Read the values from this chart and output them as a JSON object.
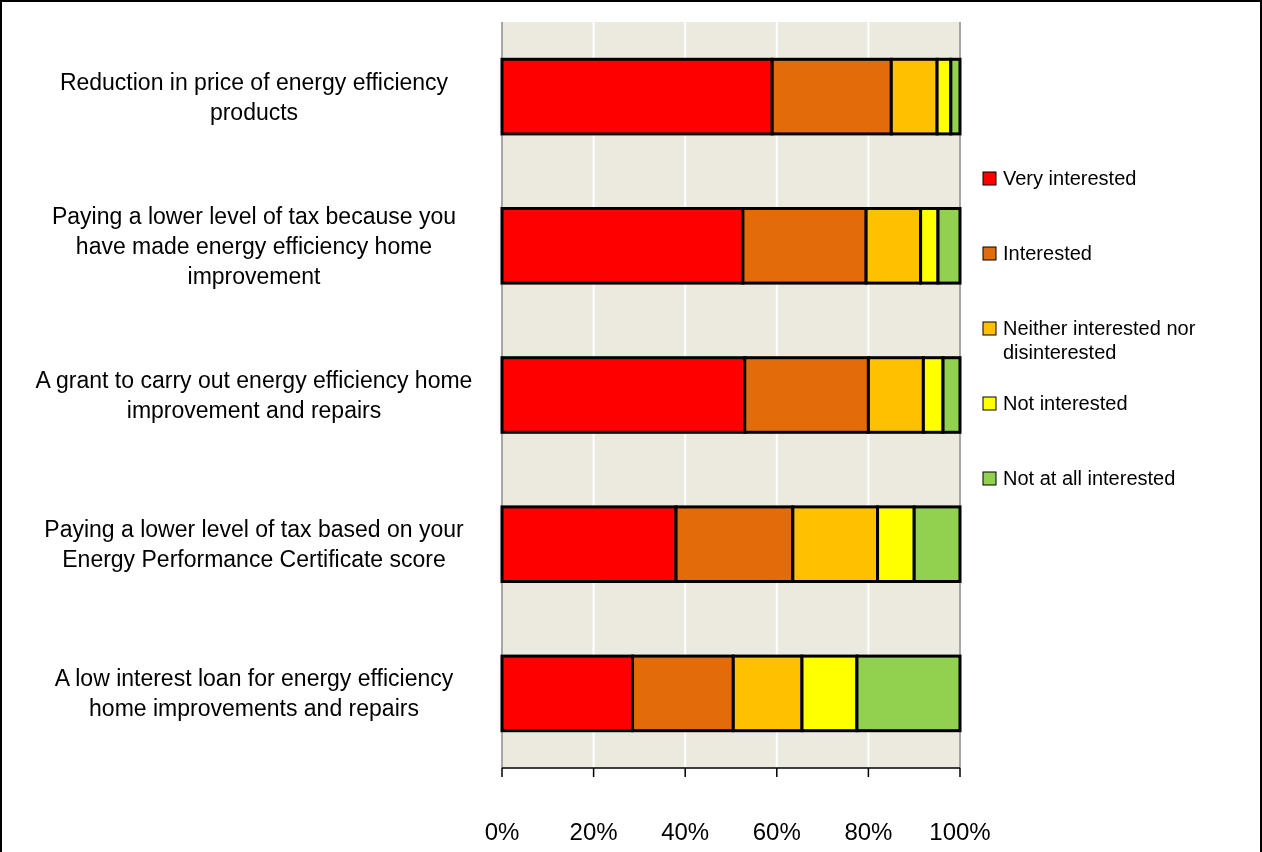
{
  "chart_data": {
    "type": "bar",
    "orientation": "horizontal",
    "stacked": true,
    "categories": [
      "Reduction in price of energy efficiency products",
      "Paying a lower level of tax because you have made energy efficiency home improvement",
      "A grant to carry out energy efficiency home improvement and repairs",
      "Paying a lower level of tax based on your Energy Performance Certificate score",
      "A low interest loan for energy efficiency home improvements and repairs"
    ],
    "series": [
      {
        "name": "Very interested",
        "color": "#ff0000",
        "values": [
          59,
          52.6,
          53,
          38,
          28.5
        ]
      },
      {
        "name": "Interested",
        "color": "#e36c0a",
        "values": [
          26,
          26.9,
          27,
          25.5,
          22
        ]
      },
      {
        "name": "Neither interested nor disinterested",
        "color": "#ffc000",
        "values": [
          10,
          11.9,
          12,
          18.5,
          15
        ]
      },
      {
        "name": "Not interested",
        "color": "#ffff00",
        "values": [
          3,
          3.8,
          4.3,
          8,
          12
        ]
      },
      {
        "name": "Not at all interested",
        "color": "#92d050",
        "values": [
          2,
          4.8,
          3.7,
          10,
          22.5
        ]
      }
    ],
    "xlim": [
      0,
      100
    ],
    "xticks": [
      {
        "value": 0,
        "label": "0%"
      },
      {
        "value": 20,
        "label": "20%"
      },
      {
        "value": 40,
        "label": "40%"
      },
      {
        "value": 60,
        "label": "60%"
      },
      {
        "value": 80,
        "label": "80%"
      },
      {
        "value": 100,
        "label": "100%"
      }
    ],
    "grid": "x",
    "legend": "right"
  }
}
